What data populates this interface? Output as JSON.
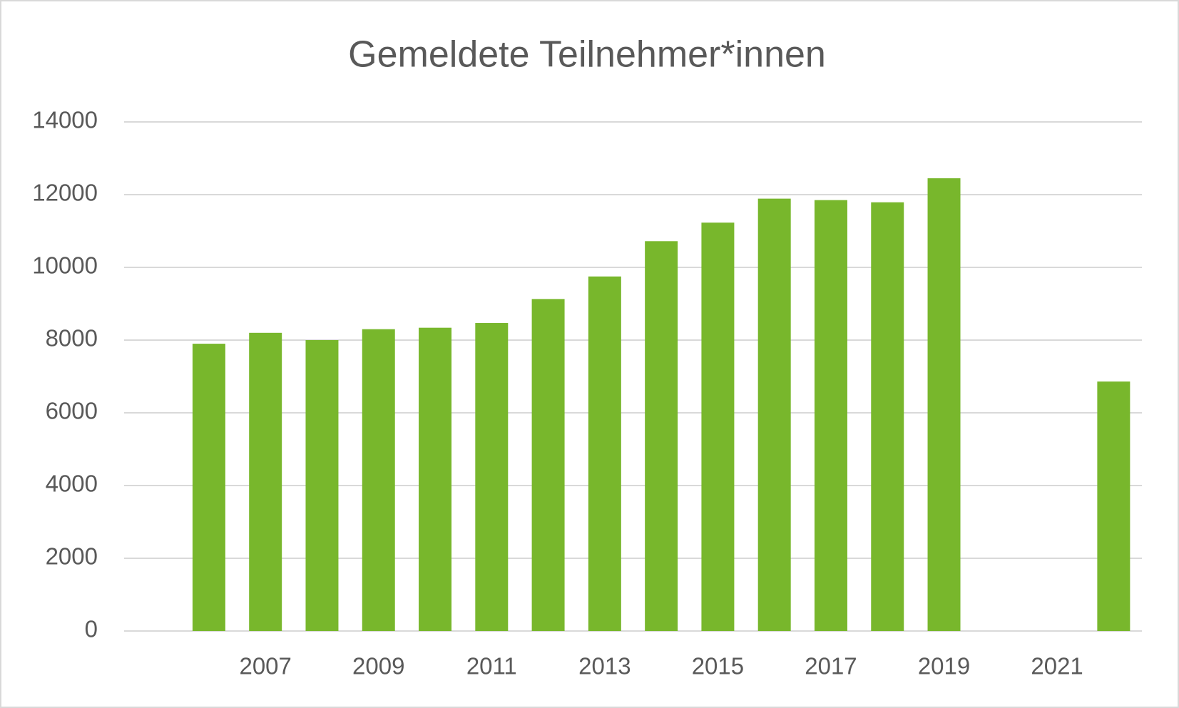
{
  "chart_data": {
    "type": "bar",
    "title": "Gemeldete Teilnehmer*innen",
    "categories": [
      null,
      null,
      "2007",
      null,
      "2009",
      null,
      "2011",
      null,
      "2013",
      null,
      "2015",
      null,
      "2017",
      null,
      "2019",
      null,
      "2021",
      null
    ],
    "values": [
      null,
      7900,
      8200,
      8000,
      8300,
      8340,
      8470,
      9130,
      9750,
      10720,
      11230,
      11890,
      11850,
      11790,
      12450,
      null,
      null,
      6860
    ],
    "color": "#78b72c",
    "ylim": [
      0,
      14000
    ],
    "yticks": [
      0,
      2000,
      4000,
      6000,
      8000,
      10000,
      12000,
      14000
    ],
    "grid": true
  }
}
